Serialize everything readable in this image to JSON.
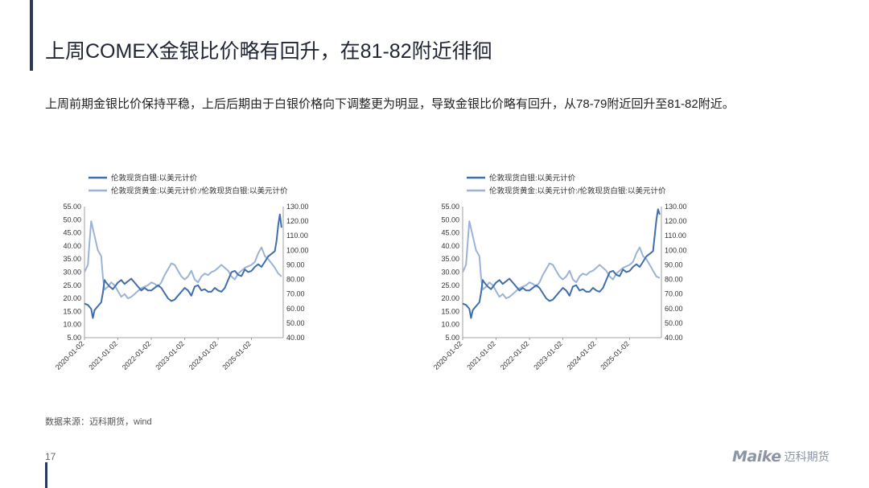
{
  "slide": {
    "title": "上周COMEX金银比价略有回升，在81-82附近徘徊",
    "subtitle": "上周前期金银比价保持平稳，上后后期由于白银价格向下调整更为明显，导致金银比价略有回升，从78-79附近回升至81-82附近。",
    "source": "数据来源：迈科期货，wind",
    "page_number": "17",
    "logo_mark": "Maike",
    "logo_cn": "迈科期货"
  },
  "colors": {
    "silver_series": "#3f6ead",
    "ratio_series": "#9bb3d6",
    "accent": "#2c3a55"
  },
  "chart_data": [
    {
      "type": "line",
      "legend_position": "top-left",
      "grid": false,
      "x_ticks": [
        "2020-01-02",
        "2021-01-02",
        "2022-01-02",
        "2023-01-02",
        "2024-01-02",
        "2025-01-02"
      ],
      "x_range": [
        2020.0,
        2025.95
      ],
      "y_left": {
        "ticks": [
          "5.00",
          "10.00",
          "15.00",
          "20.00",
          "25.00",
          "30.00",
          "35.00",
          "40.00",
          "45.00",
          "50.00",
          "55.00"
        ],
        "range": [
          5,
          55
        ]
      },
      "y_right": {
        "ticks": [
          "40.00",
          "50.00",
          "60.00",
          "70.00",
          "80.00",
          "90.00",
          "100.00",
          "110.00",
          "120.00",
          "130.00"
        ],
        "range": [
          40,
          130
        ]
      },
      "series": [
        {
          "name": "伦敦现货白银:以美元计价",
          "axis": "left",
          "x": [
            2020.0,
            2020.1,
            2020.2,
            2020.25,
            2020.3,
            2020.4,
            2020.5,
            2020.55,
            2020.6,
            2020.65,
            2020.75,
            2020.85,
            2021.0,
            2021.1,
            2021.2,
            2021.3,
            2021.4,
            2021.5,
            2021.6,
            2021.7,
            2021.8,
            2021.9,
            2022.0,
            2022.1,
            2022.2,
            2022.3,
            2022.4,
            2022.5,
            2022.6,
            2022.7,
            2022.8,
            2022.9,
            2023.0,
            2023.1,
            2023.2,
            2023.3,
            2023.4,
            2023.5,
            2023.6,
            2023.7,
            2023.8,
            2023.9,
            2024.0,
            2024.1,
            2024.2,
            2024.3,
            2024.4,
            2024.5,
            2024.6,
            2024.7,
            2024.8,
            2024.9,
            2025.0,
            2025.1,
            2025.2,
            2025.3,
            2025.4,
            2025.5,
            2025.6,
            2025.7,
            2025.75,
            2025.8,
            2025.85,
            2025.9
          ],
          "y": [
            18.0,
            17.5,
            16.0,
            12.5,
            15.5,
            17.0,
            18.5,
            22.0,
            27.0,
            26.0,
            24.5,
            23.5,
            26.0,
            27.0,
            25.5,
            26.5,
            27.5,
            26.0,
            24.5,
            23.0,
            24.0,
            23.0,
            23.0,
            24.0,
            25.0,
            24.0,
            22.0,
            20.0,
            19.0,
            19.5,
            21.0,
            22.5,
            24.0,
            23.0,
            21.0,
            24.5,
            25.0,
            23.0,
            23.5,
            22.5,
            22.5,
            24.0,
            23.0,
            22.5,
            24.0,
            27.0,
            30.0,
            30.5,
            29.0,
            28.5,
            31.0,
            30.0,
            30.5,
            32.0,
            33.0,
            32.0,
            34.0,
            36.0,
            37.0,
            38.0,
            42.0,
            48.0,
            52.0,
            47.0
          ]
        },
        {
          "name": "伦敦现货黄金:以美元计价:/伦敦现货白银:以美元计价",
          "axis": "right",
          "x": [
            2020.0,
            2020.1,
            2020.15,
            2020.2,
            2020.25,
            2020.3,
            2020.4,
            2020.5,
            2020.55,
            2020.6,
            2020.7,
            2020.8,
            2020.9,
            2021.0,
            2021.1,
            2021.2,
            2021.3,
            2021.4,
            2021.5,
            2021.6,
            2021.7,
            2021.8,
            2021.9,
            2022.0,
            2022.1,
            2022.2,
            2022.3,
            2022.4,
            2022.5,
            2022.6,
            2022.7,
            2022.8,
            2022.9,
            2023.0,
            2023.1,
            2023.2,
            2023.3,
            2023.4,
            2023.5,
            2023.6,
            2023.7,
            2023.8,
            2023.9,
            2024.0,
            2024.1,
            2024.2,
            2024.3,
            2024.4,
            2024.5,
            2024.6,
            2024.7,
            2024.8,
            2024.9,
            2025.0,
            2025.1,
            2025.2,
            2025.3,
            2025.4,
            2025.5,
            2025.6,
            2025.7,
            2025.8,
            2025.9
          ],
          "y": [
            85,
            90,
            105,
            120,
            115,
            110,
            100,
            96,
            82,
            73,
            75,
            78,
            76,
            72,
            68,
            70,
            67,
            68,
            70,
            72,
            74,
            75,
            76,
            78,
            77,
            75,
            78,
            83,
            87,
            91,
            90,
            86,
            82,
            80,
            82,
            86,
            80,
            78,
            82,
            84,
            83,
            85,
            86,
            88,
            90,
            88,
            86,
            82,
            80,
            84,
            86,
            88,
            89,
            90,
            92,
            98,
            102,
            96,
            94,
            91,
            88,
            84,
            82
          ]
        }
      ]
    },
    {
      "type": "line",
      "legend_position": "top-left",
      "grid": false,
      "x_ticks": [
        "2020-01-02",
        "2021-01-02",
        "2022-01-02",
        "2023-01-02",
        "2024-01-02",
        "2025-01-02"
      ],
      "x_range": [
        2020.0,
        2025.95
      ],
      "y_left": {
        "ticks": [
          "5.00",
          "10.00",
          "15.00",
          "20.00",
          "25.00",
          "30.00",
          "35.00",
          "40.00",
          "45.00",
          "50.00",
          "55.00"
        ],
        "range": [
          5,
          55
        ]
      },
      "y_right": {
        "ticks": [
          "40.00",
          "50.00",
          "60.00",
          "70.00",
          "80.00",
          "90.00",
          "100.00",
          "110.00",
          "120.00",
          "130.00"
        ],
        "range": [
          40,
          130
        ]
      },
      "series": [
        {
          "name": "伦敦现货白银:以美元计价",
          "axis": "left",
          "x": [
            2020.0,
            2020.1,
            2020.2,
            2020.25,
            2020.3,
            2020.4,
            2020.5,
            2020.55,
            2020.6,
            2020.65,
            2020.75,
            2020.85,
            2021.0,
            2021.1,
            2021.2,
            2021.3,
            2021.4,
            2021.5,
            2021.6,
            2021.7,
            2021.8,
            2021.9,
            2022.0,
            2022.1,
            2022.2,
            2022.3,
            2022.4,
            2022.5,
            2022.6,
            2022.7,
            2022.8,
            2022.9,
            2023.0,
            2023.1,
            2023.2,
            2023.3,
            2023.4,
            2023.5,
            2023.6,
            2023.7,
            2023.8,
            2023.9,
            2024.0,
            2024.1,
            2024.2,
            2024.3,
            2024.4,
            2024.5,
            2024.6,
            2024.7,
            2024.8,
            2024.9,
            2025.0,
            2025.1,
            2025.2,
            2025.3,
            2025.4,
            2025.5,
            2025.6,
            2025.7,
            2025.75,
            2025.8,
            2025.85,
            2025.9
          ],
          "y": [
            18.0,
            17.5,
            16.0,
            12.5,
            15.5,
            17.0,
            18.5,
            22.0,
            27.0,
            26.0,
            24.5,
            23.5,
            26.0,
            27.0,
            25.5,
            26.5,
            27.5,
            26.0,
            24.5,
            23.0,
            24.0,
            23.0,
            23.0,
            24.0,
            25.0,
            24.0,
            22.0,
            20.0,
            19.0,
            19.5,
            21.0,
            22.5,
            24.0,
            23.0,
            21.0,
            24.5,
            25.0,
            23.0,
            23.5,
            22.5,
            22.5,
            24.0,
            23.0,
            22.5,
            24.0,
            27.0,
            30.0,
            30.5,
            29.0,
            28.5,
            31.0,
            30.0,
            30.5,
            32.0,
            33.0,
            32.0,
            34.0,
            36.0,
            37.0,
            38.0,
            44.0,
            50.0,
            54.0,
            52.0
          ]
        },
        {
          "name": "伦敦现货黄金:以美元计价:/伦敦现货白银:以美元计价",
          "axis": "right",
          "x": [
            2020.0,
            2020.1,
            2020.15,
            2020.2,
            2020.25,
            2020.3,
            2020.4,
            2020.5,
            2020.55,
            2020.6,
            2020.7,
            2020.8,
            2020.9,
            2021.0,
            2021.1,
            2021.2,
            2021.3,
            2021.4,
            2021.5,
            2021.6,
            2021.7,
            2021.8,
            2021.9,
            2022.0,
            2022.1,
            2022.2,
            2022.3,
            2022.4,
            2022.5,
            2022.6,
            2022.7,
            2022.8,
            2022.9,
            2023.0,
            2023.1,
            2023.2,
            2023.3,
            2023.4,
            2023.5,
            2023.6,
            2023.7,
            2023.8,
            2023.9,
            2024.0,
            2024.1,
            2024.2,
            2024.3,
            2024.4,
            2024.5,
            2024.6,
            2024.7,
            2024.8,
            2024.9,
            2025.0,
            2025.1,
            2025.2,
            2025.3,
            2025.4,
            2025.5,
            2025.6,
            2025.7,
            2025.8,
            2025.9
          ],
          "y": [
            85,
            90,
            105,
            120,
            115,
            110,
            100,
            96,
            82,
            73,
            75,
            78,
            76,
            72,
            68,
            70,
            67,
            68,
            70,
            72,
            74,
            75,
            76,
            78,
            77,
            75,
            78,
            83,
            87,
            91,
            90,
            86,
            82,
            80,
            82,
            86,
            80,
            78,
            82,
            84,
            83,
            85,
            86,
            88,
            90,
            88,
            86,
            82,
            80,
            84,
            86,
            88,
            89,
            90,
            92,
            98,
            102,
            96,
            94,
            90,
            86,
            82,
            81
          ]
        }
      ]
    }
  ]
}
